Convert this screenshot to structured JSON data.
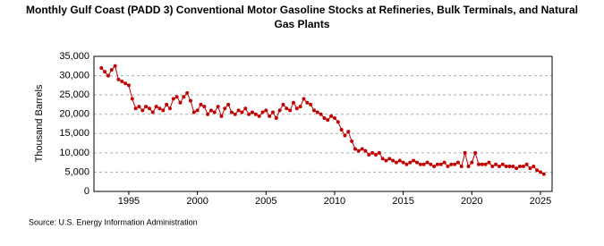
{
  "chart_data": {
    "type": "line",
    "title": "Monthly Gulf Coast (PADD 3) Conventional Motor Gasoline Stocks at Refineries, Bulk Terminals, and Natural Gas Plants",
    "y_label": "Thousand Barrels",
    "source": "Source: U.S. Energy Information Administration",
    "x": [
      1993,
      1993.25,
      1993.5,
      1993.75,
      1994,
      1994.25,
      1994.5,
      1994.75,
      1995,
      1995.25,
      1995.5,
      1995.75,
      1996,
      1996.25,
      1996.5,
      1996.75,
      1997,
      1997.25,
      1997.5,
      1997.75,
      1998,
      1998.25,
      1998.5,
      1998.75,
      1999,
      1999.25,
      1999.5,
      1999.75,
      2000,
      2000.25,
      2000.5,
      2000.75,
      2001,
      2001.25,
      2001.5,
      2001.75,
      2002,
      2002.25,
      2002.5,
      2002.75,
      2003,
      2003.25,
      2003.5,
      2003.75,
      2004,
      2004.25,
      2004.5,
      2004.75,
      2005,
      2005.25,
      2005.5,
      2005.75,
      2006,
      2006.25,
      2006.5,
      2006.75,
      2007,
      2007.25,
      2007.5,
      2007.75,
      2008,
      2008.25,
      2008.5,
      2008.75,
      2009,
      2009.25,
      2009.5,
      2009.75,
      2010,
      2010.25,
      2010.5,
      2010.75,
      2011,
      2011.25,
      2011.5,
      2011.75,
      2012,
      2012.25,
      2012.5,
      2012.75,
      2013,
      2013.25,
      2013.5,
      2013.75,
      2014,
      2014.25,
      2014.5,
      2014.75,
      2015,
      2015.25,
      2015.5,
      2015.75,
      2016,
      2016.25,
      2016.5,
      2016.75,
      2017,
      2017.25,
      2017.5,
      2017.75,
      2018,
      2018.25,
      2018.5,
      2018.75,
      2019,
      2019.25,
      2019.5,
      2019.75,
      2020,
      2020.25,
      2020.5,
      2020.75,
      2021,
      2021.25,
      2021.5,
      2021.75,
      2022,
      2022.25,
      2022.5,
      2022.75,
      2023,
      2023.25,
      2023.5,
      2023.75,
      2024,
      2024.25,
      2024.5,
      2024.75,
      2025,
      2025.25
    ],
    "series": [
      {
        "name": "Stocks",
        "color": "#c00000",
        "values": [
          32000,
          31000,
          30000,
          31500,
          32500,
          29000,
          28500,
          28000,
          27500,
          24000,
          21500,
          22000,
          21000,
          22000,
          21500,
          20500,
          22000,
          21500,
          21000,
          22500,
          21500,
          24000,
          24500,
          23000,
          24500,
          25500,
          23500,
          20500,
          21000,
          22500,
          22000,
          20000,
          21000,
          20500,
          22000,
          19500,
          21500,
          22500,
          20500,
          20000,
          21000,
          20500,
          21500,
          20000,
          20500,
          20000,
          19500,
          20500,
          21000,
          19500,
          20500,
          19000,
          21000,
          22500,
          21500,
          21000,
          23000,
          21500,
          22000,
          24000,
          23000,
          22500,
          21000,
          20500,
          20000,
          19000,
          18500,
          19500,
          19000,
          18000,
          16000,
          14500,
          15500,
          13000,
          11000,
          10500,
          11000,
          10500,
          9500,
          10000,
          9500,
          10000,
          8500,
          8000,
          8500,
          8000,
          7500,
          8000,
          7500,
          7000,
          7500,
          8000,
          7500,
          7000,
          7000,
          7500,
          7000,
          6500,
          7000,
          7000,
          7500,
          6500,
          7000,
          7000,
          7500,
          6500,
          10000,
          6500,
          7500,
          10000,
          7000,
          7000,
          7000,
          7500,
          6500,
          7000,
          6500,
          7000,
          6500,
          6500,
          6500,
          6000,
          6500,
          6500,
          7000,
          6000,
          6500,
          5500,
          5000,
          4500
        ]
      }
    ],
    "xlim": [
      1992.46,
      2025.85
    ],
    "xticks": [
      1995,
      2000,
      2005,
      2010,
      2015,
      2020,
      2025
    ],
    "ylim": [
      0,
      35000
    ],
    "yticks": [
      0,
      {
        "value": 5000,
        "label": "5,000"
      },
      {
        "value": 10000,
        "label": "10,000"
      },
      {
        "value": 15000,
        "label": "15,000"
      },
      {
        "value": 20000,
        "label": "20,000"
      },
      {
        "value": 25000,
        "label": "25,000"
      },
      {
        "value": 30000,
        "label": "30,000"
      },
      {
        "value": 35000,
        "label": "35,000"
      }
    ],
    "grid": true
  }
}
